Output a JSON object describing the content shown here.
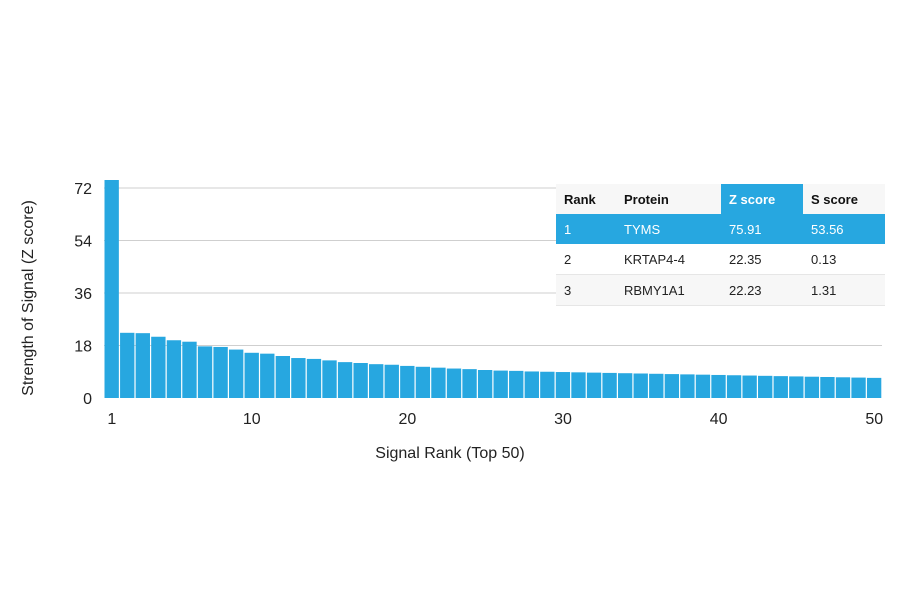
{
  "colors": {
    "bar": "#27a7e0",
    "grid": "#cfcfcf",
    "highlight": "#27a7e0"
  },
  "chart_data": {
    "type": "bar",
    "xlabel": "Signal Rank (Top 50)",
    "ylabel": "Strength of Signal (Z score)",
    "ylim": [
      0,
      72
    ],
    "yticks": [
      0,
      18,
      36,
      54,
      72
    ],
    "xticks": [
      1,
      10,
      20,
      30,
      40,
      50
    ],
    "grid": true,
    "categories": [
      1,
      2,
      3,
      4,
      5,
      6,
      7,
      8,
      9,
      10,
      11,
      12,
      13,
      14,
      15,
      16,
      17,
      18,
      19,
      20,
      21,
      22,
      23,
      24,
      25,
      26,
      27,
      28,
      29,
      30,
      31,
      32,
      33,
      34,
      35,
      36,
      37,
      38,
      39,
      40,
      41,
      42,
      43,
      44,
      45,
      46,
      47,
      48,
      49,
      50
    ],
    "values": [
      75.91,
      22.35,
      22.23,
      21.0,
      19.8,
      19.3,
      17.7,
      17.5,
      16.6,
      15.5,
      15.2,
      14.4,
      13.7,
      13.4,
      12.9,
      12.3,
      12.0,
      11.6,
      11.4,
      11.0,
      10.7,
      10.4,
      10.1,
      9.9,
      9.6,
      9.4,
      9.3,
      9.1,
      9.0,
      8.9,
      8.8,
      8.7,
      8.6,
      8.5,
      8.4,
      8.3,
      8.2,
      8.1,
      8.0,
      7.9,
      7.8,
      7.7,
      7.6,
      7.5,
      7.4,
      7.3,
      7.2,
      7.1,
      7.0,
      6.9
    ]
  },
  "table": {
    "headers": [
      "Rank",
      "Protein",
      "Z score",
      "S score"
    ],
    "rows": [
      {
        "rank": "1",
        "protein": "TYMS",
        "z": "75.91",
        "s": "53.56"
      },
      {
        "rank": "2",
        "protein": "KRTAP4-4",
        "z": "22.35",
        "s": "0.13"
      },
      {
        "rank": "3",
        "protein": "RBMY1A1",
        "z": "22.23",
        "s": "1.31"
      }
    ]
  }
}
